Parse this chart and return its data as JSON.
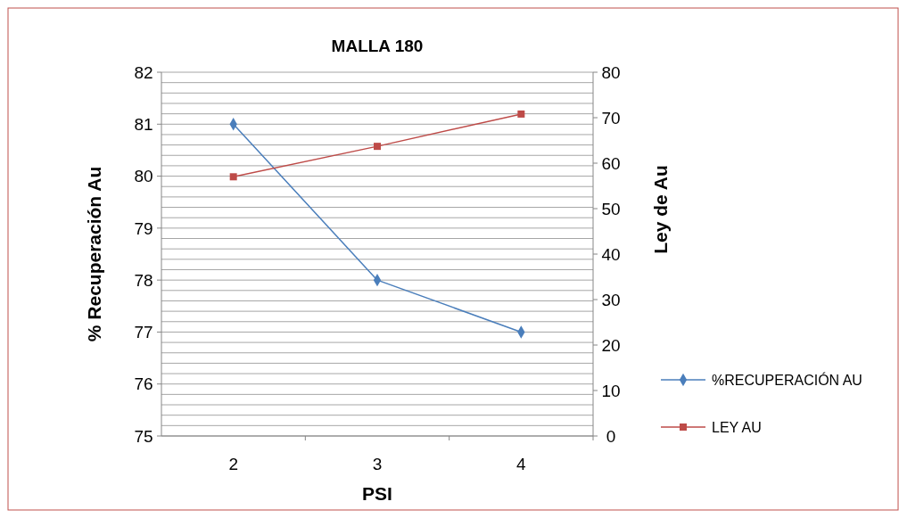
{
  "chart_data": {
    "type": "line",
    "title": "MALLA 180",
    "xlabel": "PSI",
    "ylabel": "% Recuperación Au",
    "y2label": "Ley de Au",
    "categories": [
      "2",
      "3",
      "4"
    ],
    "series": [
      {
        "name": "%RECUPERACIÓN AU",
        "color": "#4a7ebb",
        "values": [
          81,
          78,
          77
        ],
        "marker": "diamond"
      },
      {
        "name": "LEY AU",
        "color": "#be4b48",
        "values": [
          57,
          63.7,
          70.8
        ],
        "axis": "y2",
        "marker": "square"
      }
    ],
    "ylim": [
      75,
      82
    ],
    "yticks": [
      75,
      {
        "value": 75.2,
        "label": null
      },
      {
        "value": 75.4,
        "label": null
      },
      {
        "value": 75.6,
        "label": null
      },
      {
        "value": 75.8,
        "label": null
      },
      76,
      {
        "value": 76.2,
        "label": null
      },
      {
        "value": 76.4,
        "label": null
      },
      {
        "value": 76.6,
        "label": null
      },
      {
        "value": 76.8,
        "label": null
      },
      77,
      {
        "value": 77.2,
        "label": null
      },
      {
        "value": 77.4,
        "label": null
      },
      {
        "value": 77.6,
        "label": null
      },
      {
        "value": 77.8,
        "label": null
      },
      78,
      {
        "value": 78.2,
        "label": null
      },
      {
        "value": 78.4,
        "label": null
      },
      {
        "value": 78.6,
        "label": null
      },
      {
        "value": 78.8,
        "label": null
      },
      79,
      {
        "value": 79.2,
        "label": null
      },
      {
        "value": 79.4,
        "label": null
      },
      {
        "value": 79.6,
        "label": null
      },
      {
        "value": 79.8,
        "label": null
      },
      80,
      {
        "value": 80.2,
        "label": null
      },
      {
        "value": 80.4,
        "label": null
      },
      {
        "value": 80.6,
        "label": null
      },
      {
        "value": 80.8,
        "label": null
      },
      81,
      {
        "value": 81.2,
        "label": null
      },
      {
        "value": 81.4,
        "label": null
      },
      {
        "value": 81.6,
        "label": null
      },
      {
        "value": 81.8,
        "label": null
      },
      82
    ],
    "y2lim": [
      0,
      80
    ],
    "y2ticks": [
      0,
      10,
      20,
      30,
      40,
      50,
      60,
      70,
      80
    ],
    "grid": "y",
    "legend": "right",
    "line_style": "solid"
  }
}
